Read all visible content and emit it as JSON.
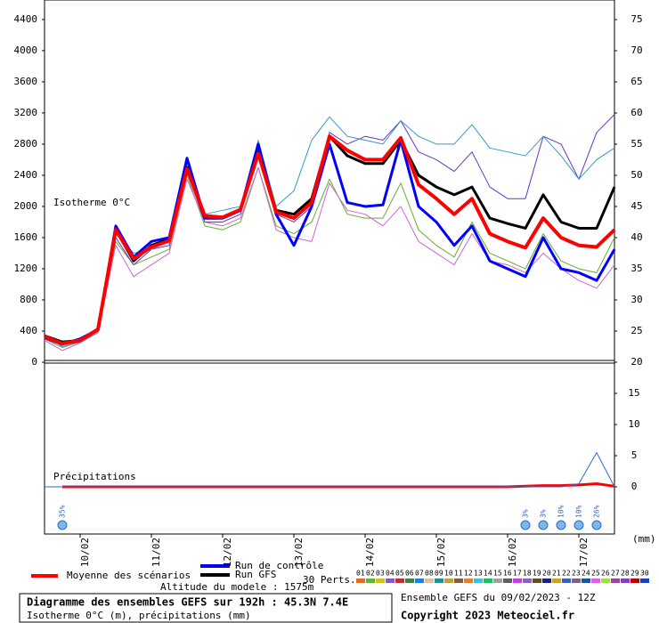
{
  "chart_data": [
    {
      "type": "line",
      "annotation": "Isotherme 0°C",
      "ylim": [
        0,
        4650
      ],
      "yticks": [
        0,
        400,
        800,
        1200,
        1600,
        2000,
        2400,
        2800,
        3200,
        3600,
        4000,
        4400
      ],
      "y2lim": [
        20,
        78.14
      ],
      "y2ticks": [
        20,
        25,
        30,
        35,
        40,
        45,
        50,
        55,
        60,
        65,
        70,
        75
      ],
      "series": [
        {
          "name": "Moyenne des scénarios",
          "color": "#ff0000",
          "values": [
            330,
            240,
            280,
            420,
            1700,
            1330,
            1480,
            1560,
            2480,
            1880,
            1860,
            1960,
            2680,
            1930,
            1850,
            2050,
            2900,
            2720,
            2600,
            2600,
            2880,
            2280,
            2100,
            1900,
            2100,
            1650,
            1550,
            1470,
            1850,
            1600,
            1500,
            1480,
            1700
          ]
        },
        {
          "name": "Run de contrôle",
          "color": "#0000ff",
          "values": [
            320,
            230,
            300,
            420,
            1750,
            1350,
            1550,
            1600,
            2620,
            1850,
            1850,
            1950,
            2800,
            1900,
            1500,
            2000,
            2800,
            2050,
            2000,
            2020,
            2850,
            2000,
            1800,
            1500,
            1750,
            1300,
            1200,
            1100,
            1600,
            1200,
            1150,
            1050,
            1450
          ]
        },
        {
          "name": "Run GFS",
          "color": "#000000",
          "values": [
            340,
            260,
            280,
            430,
            1700,
            1300,
            1500,
            1580,
            2500,
            1850,
            1850,
            1950,
            2700,
            1950,
            1900,
            2100,
            2900,
            2650,
            2550,
            2550,
            2850,
            2400,
            2250,
            2150,
            2250,
            1850,
            1780,
            1720,
            2150,
            1800,
            1720,
            1720,
            2250
          ]
        },
        {
          "color": "#3399cc",
          "values": [
            350,
            200,
            260,
            380,
            1650,
            1400,
            1450,
            1550,
            2550,
            1900,
            1950,
            2000,
            2850,
            2000,
            2200,
            2850,
            3150,
            2900,
            2850,
            2800,
            3100,
            2900,
            2800,
            2800,
            3050,
            2750,
            2700,
            2650,
            2900,
            2650,
            2350,
            2600,
            2750
          ]
        },
        {
          "color": "#6633cc",
          "values": [
            300,
            220,
            270,
            400,
            1600,
            1250,
            1450,
            1500,
            2450,
            1800,
            1800,
            1900,
            2750,
            1900,
            1800,
            2000,
            2950,
            2800,
            2900,
            2850,
            3100,
            2700,
            2600,
            2450,
            2700,
            2250,
            2100,
            2100,
            2900,
            2800,
            2350,
            2950,
            3180
          ]
        },
        {
          "color": "#cc66cc",
          "values": [
            280,
            150,
            250,
            380,
            1500,
            1100,
            1250,
            1400,
            2350,
            1800,
            1750,
            1850,
            2500,
            1700,
            1600,
            1550,
            2300,
            1950,
            1900,
            1750,
            2000,
            1550,
            1400,
            1250,
            1650,
            1300,
            1250,
            1150,
            1400,
            1200,
            1050,
            950,
            1250
          ]
        },
        {
          "color": "#66aa33",
          "values": [
            300,
            190,
            260,
            400,
            1550,
            1250,
            1350,
            1450,
            2400,
            1750,
            1700,
            1800,
            2500,
            1750,
            1650,
            1800,
            2350,
            1900,
            1850,
            1850,
            2300,
            1700,
            1500,
            1350,
            1800,
            1400,
            1300,
            1200,
            1650,
            1300,
            1200,
            1150,
            1600
          ]
        }
      ]
    },
    {
      "type": "line",
      "annotation": "Précipitations",
      "y_label": "(mm)",
      "categories": [
        null,
        null,
        "10/02",
        null,
        null,
        null,
        "11/02",
        null,
        null,
        null,
        "12/02",
        null,
        null,
        null,
        "13/02",
        null,
        null,
        null,
        "14/02",
        null,
        null,
        null,
        "15/02",
        null,
        null,
        null,
        "16/02",
        null,
        null,
        null,
        "17/02",
        null,
        null
      ],
      "ylim": [
        -7.57,
        20
      ],
      "yticks": [
        0,
        5,
        10,
        15
      ],
      "series": [
        {
          "color": "#3366cc",
          "values": [
            0,
            0,
            0,
            0,
            0,
            0,
            0,
            0,
            0,
            0,
            0,
            0,
            0,
            0,
            0,
            0,
            0,
            0,
            0,
            0,
            0,
            0,
            0,
            0,
            0,
            0,
            0,
            0,
            0,
            0,
            0.5,
            5.5,
            0
          ]
        },
        {
          "color": "#ff0000",
          "values": [
            null,
            0,
            0,
            0,
            0,
            0,
            0,
            0,
            0,
            0,
            0,
            0,
            0,
            0,
            0,
            0,
            0,
            0,
            0,
            0,
            0,
            0,
            0,
            0,
            0,
            0,
            0,
            0.1,
            0.2,
            0.2,
            0.3,
            0.5,
            0.1
          ]
        }
      ],
      "snow": {
        "values": [
          null,
          35,
          null,
          null,
          null,
          null,
          null,
          null,
          null,
          null,
          null,
          null,
          null,
          null,
          null,
          null,
          null,
          null,
          null,
          null,
          null,
          null,
          null,
          null,
          null,
          null,
          null,
          3,
          3,
          10,
          10,
          26,
          null
        ],
        "value_labels": [
          null,
          "35%",
          null,
          null,
          null,
          null,
          null,
          null,
          null,
          null,
          null,
          null,
          null,
          null,
          null,
          null,
          null,
          null,
          null,
          null,
          null,
          null,
          null,
          null,
          null,
          null,
          null,
          "3%",
          "3%",
          "10%",
          "10%",
          "26%",
          null
        ]
      }
    }
  ],
  "legend": {
    "mean": "Moyenne des scénarios",
    "control": "Run de contrôle",
    "gfs": "Run GFS",
    "altitude": "Altitude du modele : 1575m"
  },
  "perturbations": {
    "title": "30 Perts.",
    "items": [
      {
        "label": "01",
        "color": "#e07020"
      },
      {
        "label": "02",
        "color": "#60b040"
      },
      {
        "label": "03",
        "color": "#d0c020"
      },
      {
        "label": "04",
        "color": "#8060c0"
      },
      {
        "label": "05",
        "color": "#c03030"
      },
      {
        "label": "06",
        "color": "#408040"
      },
      {
        "label": "07",
        "color": "#2080e0"
      },
      {
        "label": "08",
        "color": "#e0c0a0"
      },
      {
        "label": "09",
        "color": "#209090"
      },
      {
        "label": "10",
        "color": "#c0a040"
      },
      {
        "label": "11",
        "color": "#806040"
      },
      {
        "label": "12",
        "color": "#e08030"
      },
      {
        "label": "13",
        "color": "#40c0e0"
      },
      {
        "label": "14",
        "color": "#20c060"
      },
      {
        "label": "15",
        "color": "#a0a0a0"
      },
      {
        "label": "16",
        "color": "#606060"
      },
      {
        "label": "17",
        "color": "#c040e0"
      },
      {
        "label": "18",
        "color": "#9060c0"
      },
      {
        "label": "19",
        "color": "#605020"
      },
      {
        "label": "20",
        "color": "#202080"
      },
      {
        "label": "21",
        "color": "#d0a020"
      },
      {
        "label": "22",
        "color": "#4060c0"
      },
      {
        "label": "23",
        "color": "#806080"
      },
      {
        "label": "24",
        "color": "#2050a0"
      },
      {
        "label": "25",
        "color": "#e060e0"
      },
      {
        "label": "26",
        "color": "#a0e040"
      },
      {
        "label": "27",
        "color": "#a040a0"
      },
      {
        "label": "28",
        "color": "#8040c0"
      },
      {
        "label": "29",
        "color": "#c00000"
      },
      {
        "label": "30",
        "color": "#2040c0"
      }
    ]
  },
  "footer": {
    "title": "Diagramme des ensembles GEFS sur 192h : 45.3N 7.4E",
    "subtitle": "Isotherme 0°C (m), précipitations (mm)",
    "run": "Ensemble GEFS du 09/02/2023 - 12Z",
    "copyright": "Copyright 2023 Meteociel.fr"
  }
}
